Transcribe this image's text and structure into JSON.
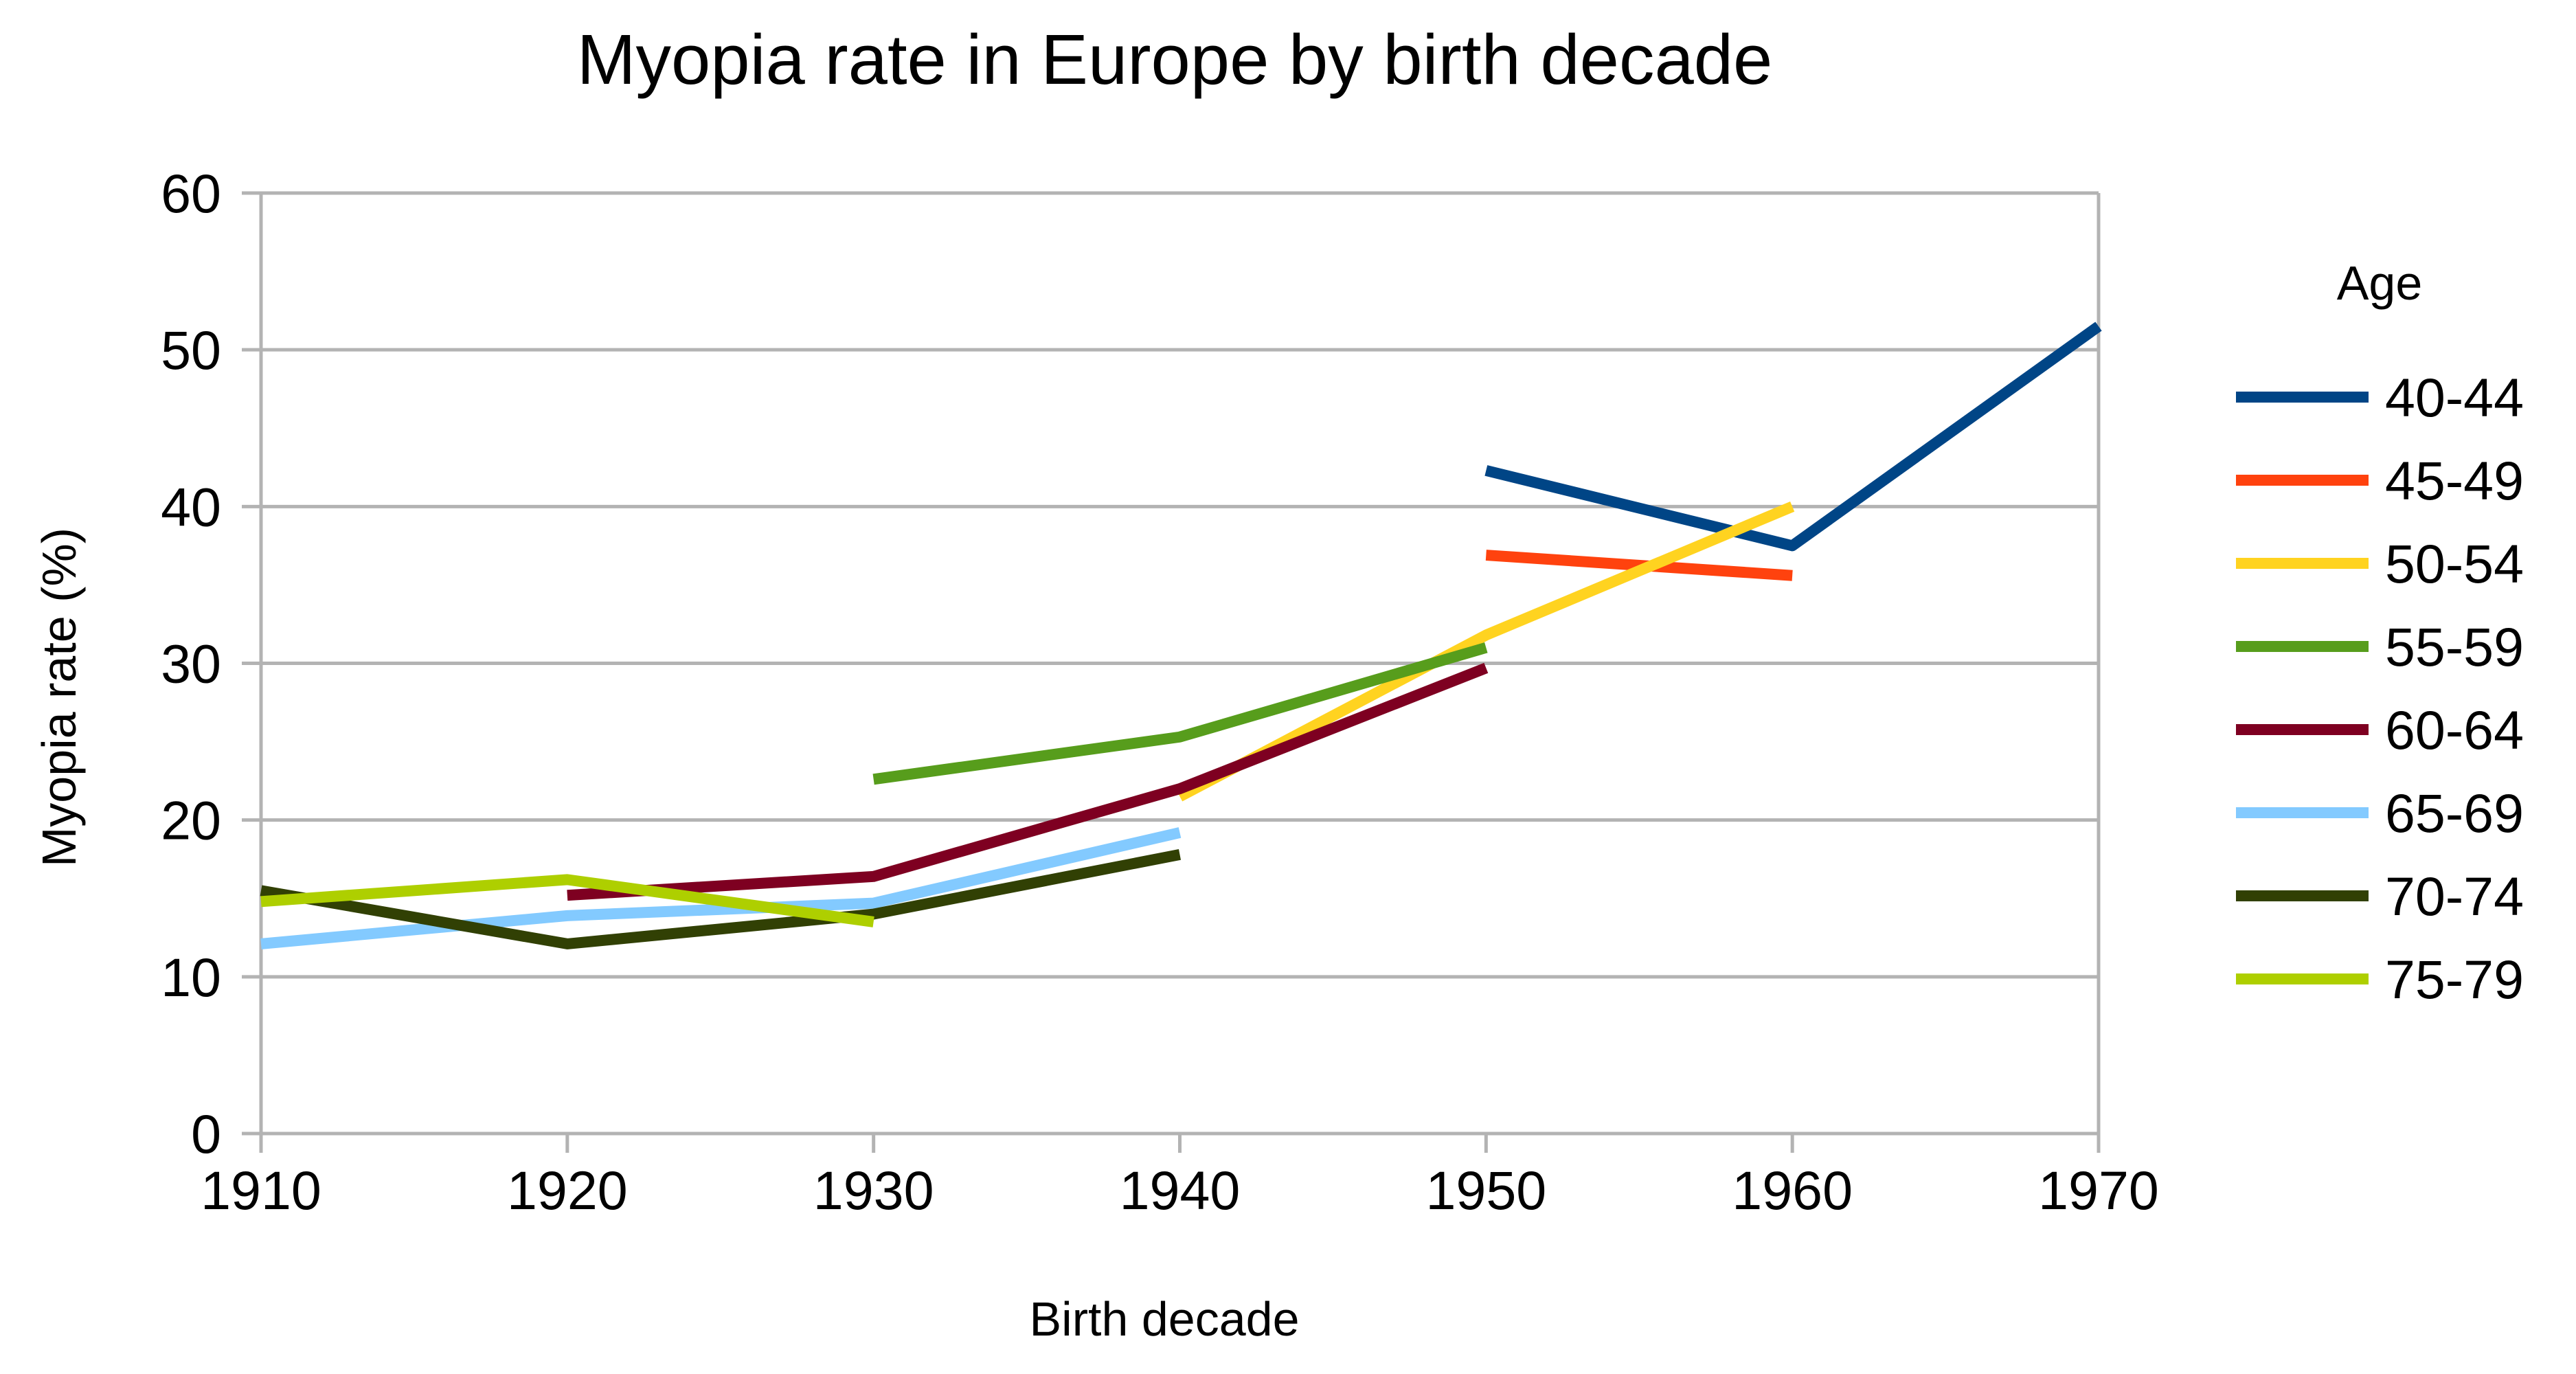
{
  "chart_data": {
    "type": "line",
    "title": "Myopia rate in Europe by birth decade",
    "xlabel": "Birth decade",
    "ylabel": "Myopia rate (%)",
    "xlim": [
      1910,
      1970
    ],
    "ylim": [
      0,
      60
    ],
    "x_ticks": [
      1910,
      1920,
      1930,
      1940,
      1950,
      1960,
      1970
    ],
    "y_ticks": [
      0,
      10,
      20,
      30,
      40,
      50,
      60
    ],
    "grid": "horizontal",
    "legend_position": "right",
    "legend_title": "Age",
    "series": [
      {
        "name": "40-44",
        "color": "#004586",
        "points": [
          [
            1950,
            42.3
          ],
          [
            1960,
            37.5
          ],
          [
            1970,
            51.5
          ]
        ]
      },
      {
        "name": "45-49",
        "color": "#ff420e",
        "points": [
          [
            1950,
            36.9
          ],
          [
            1960,
            35.6
          ]
        ]
      },
      {
        "name": "50-54",
        "color": "#ffd320",
        "points": [
          [
            1940,
            21.5
          ],
          [
            1950,
            31.8
          ],
          [
            1960,
            40.0
          ]
        ]
      },
      {
        "name": "55-59",
        "color": "#579d1c",
        "points": [
          [
            1930,
            22.6
          ],
          [
            1940,
            25.3
          ],
          [
            1950,
            31.0
          ]
        ]
      },
      {
        "name": "60-64",
        "color": "#7e0021",
        "points": [
          [
            1920,
            15.2
          ],
          [
            1930,
            16.4
          ],
          [
            1940,
            22.0
          ],
          [
            1950,
            29.7
          ]
        ]
      },
      {
        "name": "65-69",
        "color": "#83caff",
        "points": [
          [
            1910,
            12.1
          ],
          [
            1920,
            13.9
          ],
          [
            1930,
            14.7
          ],
          [
            1940,
            19.2
          ]
        ]
      },
      {
        "name": "70-74",
        "color": "#314004",
        "points": [
          [
            1910,
            15.5
          ],
          [
            1920,
            12.1
          ],
          [
            1930,
            14.0
          ],
          [
            1940,
            17.8
          ]
        ]
      },
      {
        "name": "75-79",
        "color": "#aecf00",
        "points": [
          [
            1910,
            14.8
          ],
          [
            1920,
            16.2
          ],
          [
            1930,
            13.5
          ]
        ]
      }
    ]
  },
  "colors": {
    "grid": "#b3b3b3",
    "text": "#000000",
    "background": "#ffffff"
  }
}
